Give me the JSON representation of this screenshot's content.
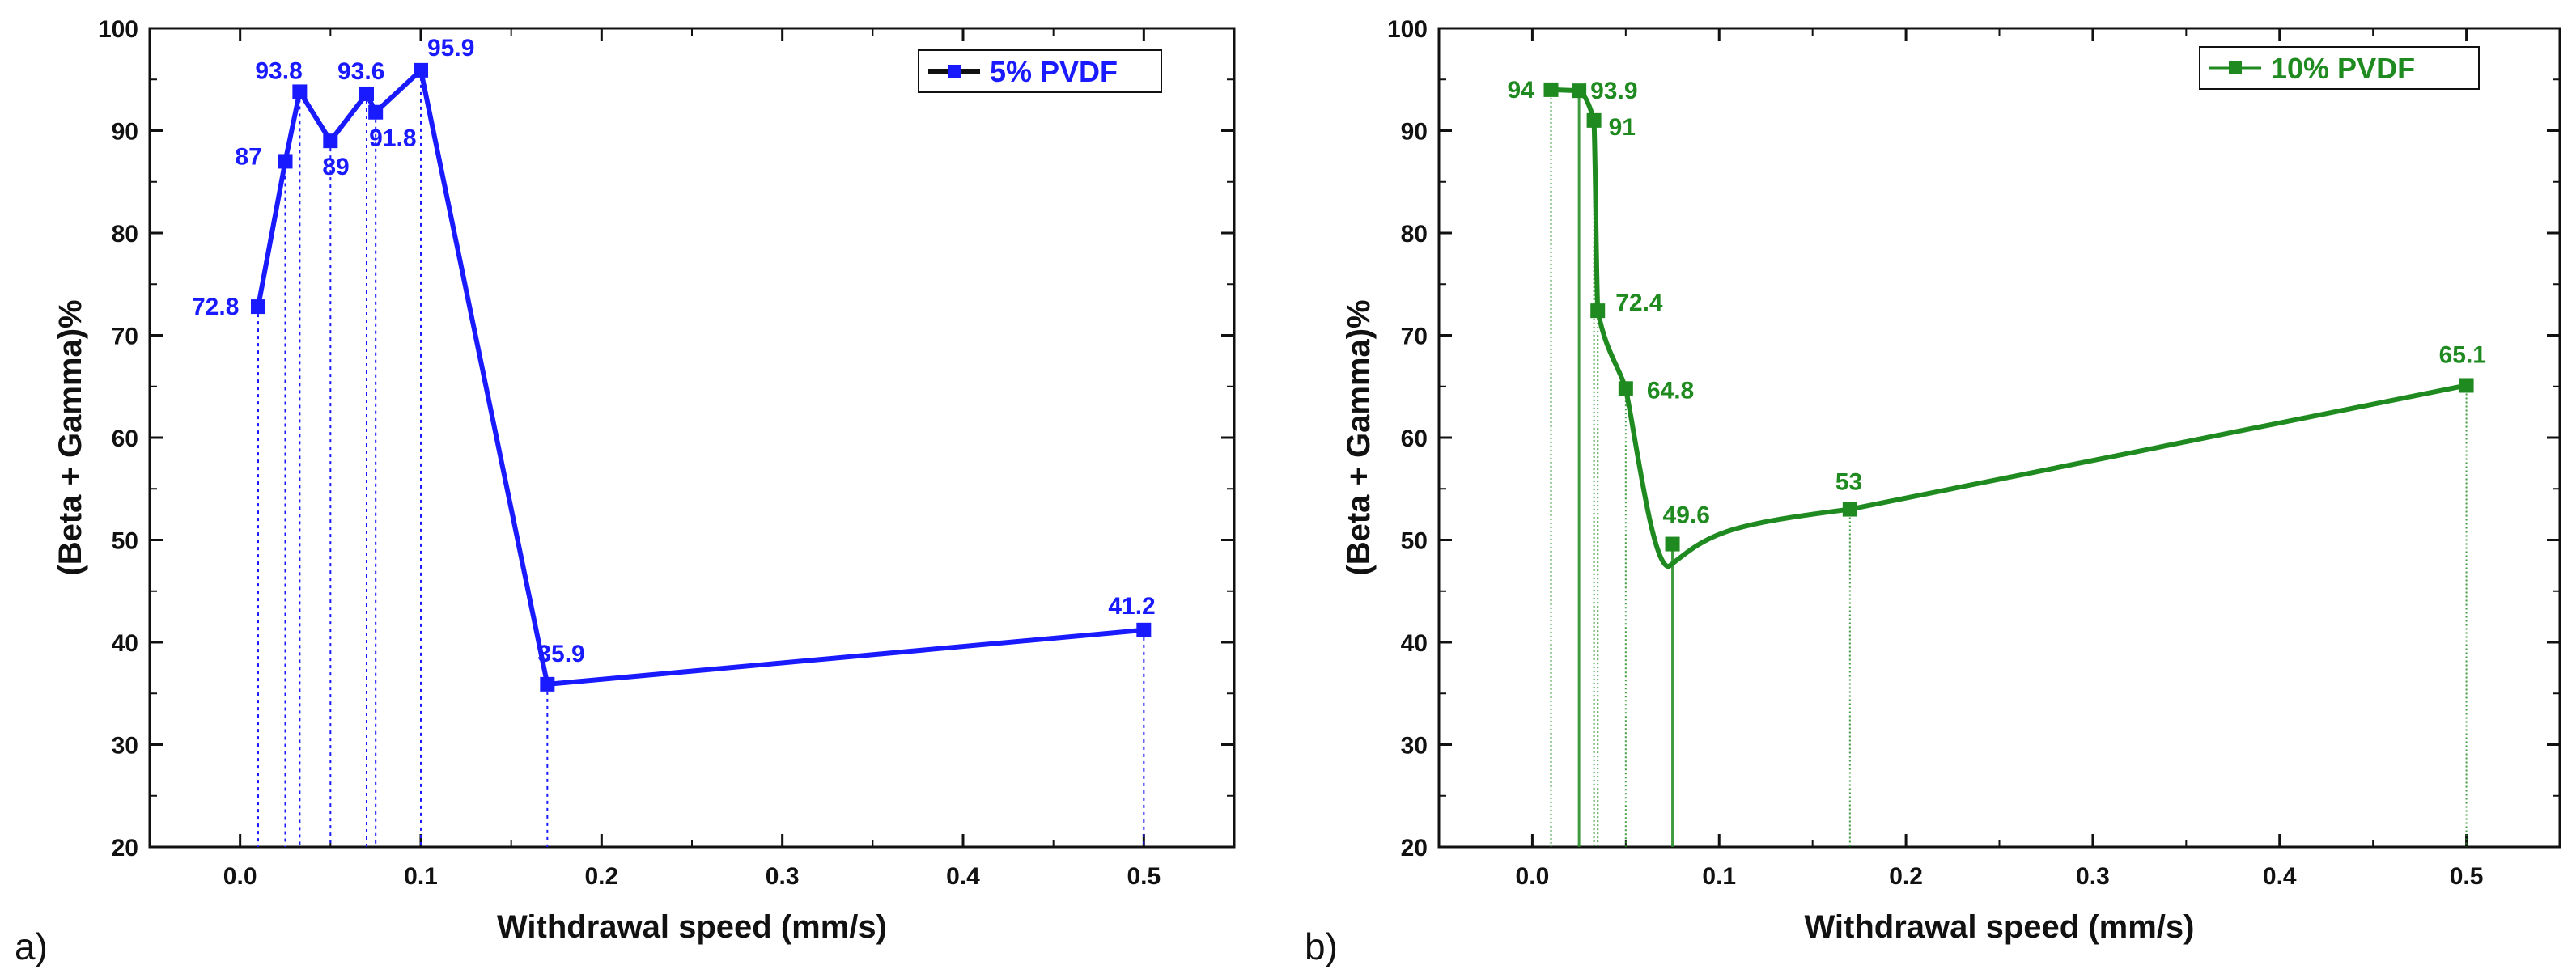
{
  "chart_data": [
    {
      "panel_label": "a)",
      "type": "line",
      "xlabel": "Withdrawal speed (mm/s)",
      "ylabel": "(Beta + Gamma)%",
      "xlim": [
        -0.05,
        0.55
      ],
      "ylim": [
        20,
        100
      ],
      "xticks": [
        "0.0",
        "0.1",
        "0.2",
        "0.3",
        "0.4",
        "0.5"
      ],
      "yticks": [
        "20",
        "30",
        "40",
        "50",
        "60",
        "70",
        "80",
        "90",
        "100"
      ],
      "grid": false,
      "legend_position": "top-right",
      "color": "#1a1aff",
      "line_style": "straight",
      "drop_lines": true,
      "series": [
        {
          "name": "5% PVDF",
          "points": [
            {
              "x": 0.01,
              "y": 72.8,
              "label": "72.8"
            },
            {
              "x": 0.025,
              "y": 87,
              "label": "87"
            },
            {
              "x": 0.033,
              "y": 93.8,
              "label": "93.8"
            },
            {
              "x": 0.05,
              "y": 89,
              "label": "89"
            },
            {
              "x": 0.07,
              "y": 93.6,
              "label": "93.6"
            },
            {
              "x": 0.075,
              "y": 91.8,
              "label": "91.8"
            },
            {
              "x": 0.1,
              "y": 95.9,
              "label": "95.9"
            },
            {
              "x": 0.17,
              "y": 35.9,
              "label": "35.9"
            },
            {
              "x": 0.5,
              "y": 41.2,
              "label": "41.2"
            }
          ]
        }
      ]
    },
    {
      "panel_label": "b)",
      "type": "line",
      "xlabel": "Withdrawal speed (mm/s)",
      "ylabel": "(Beta + Gamma)%",
      "xlim": [
        -0.05,
        0.55
      ],
      "ylim": [
        20,
        100
      ],
      "xticks": [
        "0.0",
        "0.1",
        "0.2",
        "0.3",
        "0.4",
        "0.5"
      ],
      "yticks": [
        "20",
        "30",
        "40",
        "50",
        "60",
        "70",
        "80",
        "90",
        "100"
      ],
      "grid": false,
      "legend_position": "top-right",
      "color": "#1f8a1f",
      "line_style": "smooth",
      "drop_lines": true,
      "series": [
        {
          "name": "10% PVDF",
          "points": [
            {
              "x": 0.01,
              "y": 94,
              "label": "94"
            },
            {
              "x": 0.025,
              "y": 93.9,
              "label": "93.9"
            },
            {
              "x": 0.033,
              "y": 91,
              "label": "91"
            },
            {
              "x": 0.035,
              "y": 72.4,
              "label": "72.4"
            },
            {
              "x": 0.05,
              "y": 64.8,
              "label": "64.8"
            },
            {
              "x": 0.075,
              "y": 49.6,
              "label": "49.6"
            },
            {
              "x": 0.17,
              "y": 53,
              "label": "53"
            },
            {
              "x": 0.5,
              "y": 65.1,
              "label": "65.1"
            }
          ]
        }
      ]
    }
  ]
}
